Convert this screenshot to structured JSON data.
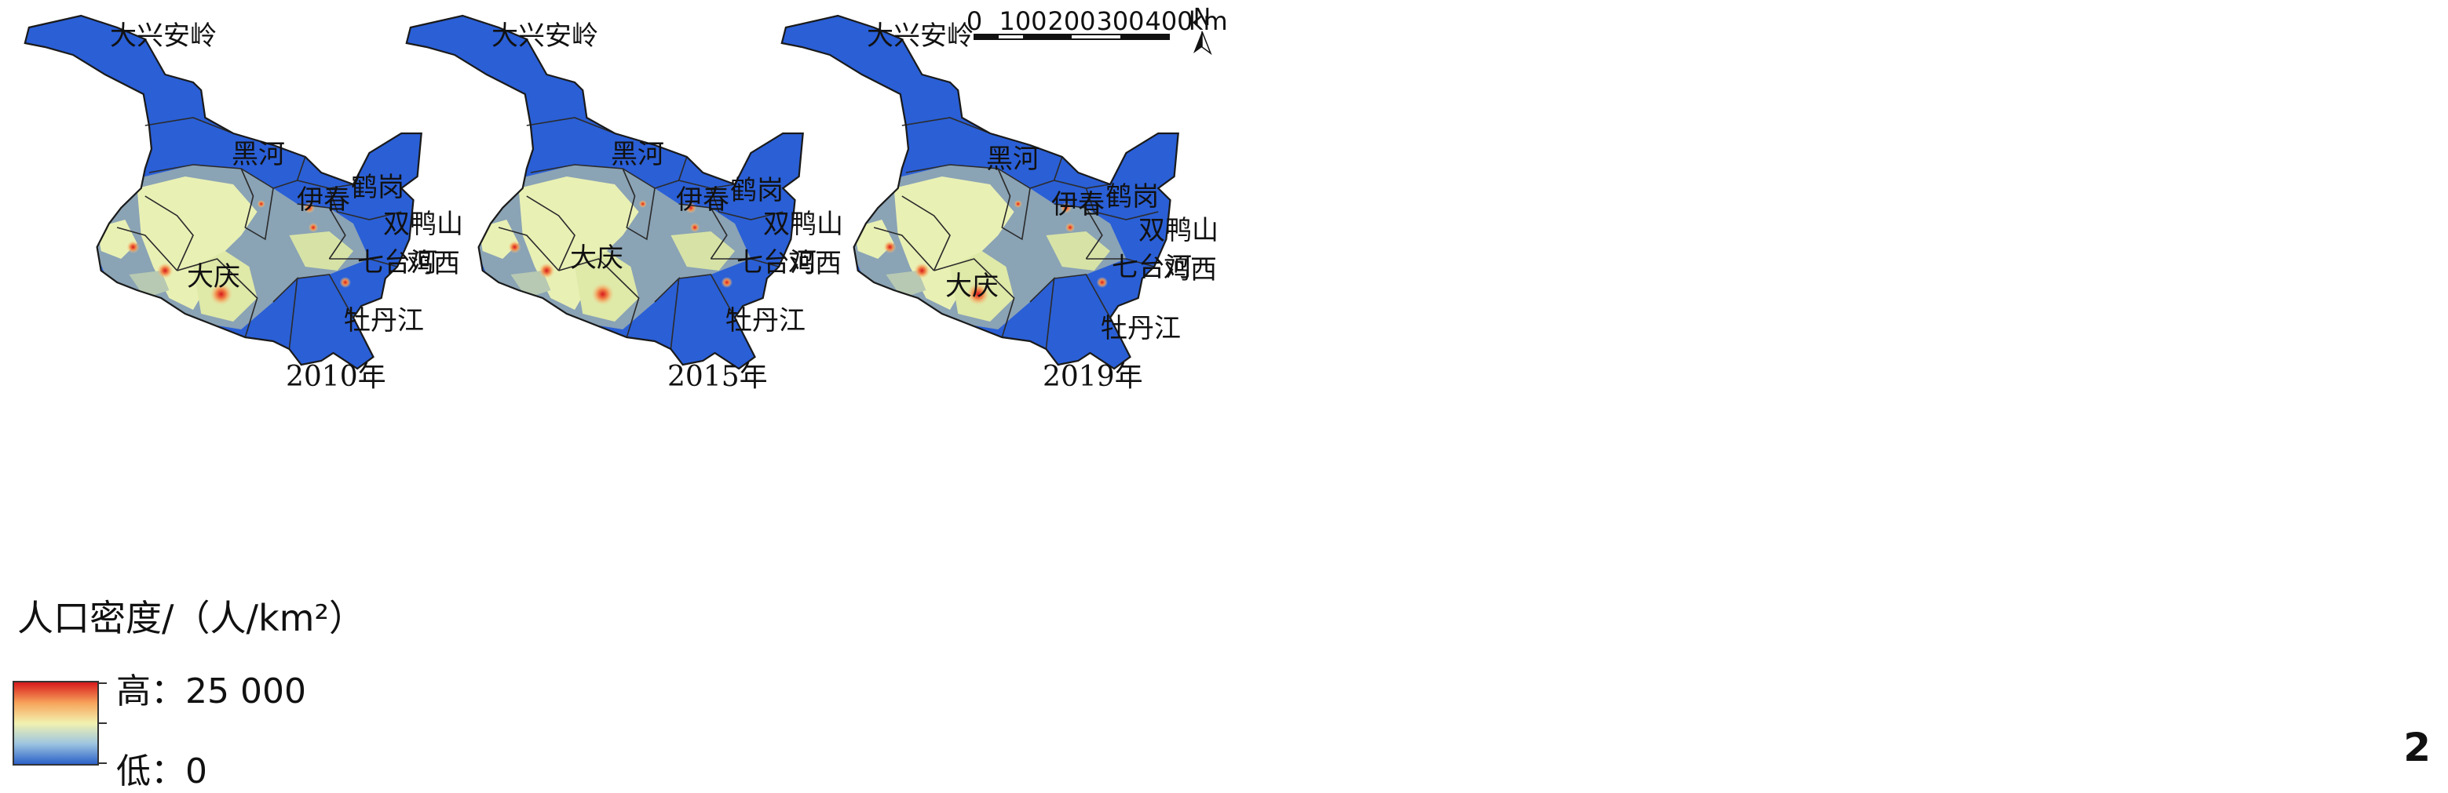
{
  "panels": [
    {
      "year": "2010年"
    },
    {
      "year": "2015年"
    },
    {
      "year": "2019年"
    }
  ],
  "region_labels": {
    "daxinganling": "大兴安岭",
    "heihe": "黑河",
    "yichun": "伊春",
    "hegang": "鹤岗",
    "shuangyashan": "双鸭山",
    "qitaihe": "七台河",
    "jixi": "鸡西",
    "daqing": "大庆",
    "mudanjiang": "牡丹江"
  },
  "legend": {
    "title": "人口密度/（人/km²）",
    "high_label": "高：25 000",
    "low_label": "低：0",
    "colors": [
      "#d7191c",
      "#f28a4b",
      "#f7d08a",
      "#f2f2b0",
      "#c9e3b8",
      "#6f9dd6",
      "#2c62c8"
    ]
  },
  "scale_bar": {
    "ticks": [
      "0",
      "100",
      "200",
      "300",
      "400"
    ],
    "unit": "km"
  },
  "north_arrow": {
    "label": "N"
  },
  "panel_number": "2",
  "map_colors": {
    "low": "#2a5fd6",
    "mid": "#e9f0b4",
    "grey": "#8aa3b5",
    "high": "#d7191c"
  }
}
